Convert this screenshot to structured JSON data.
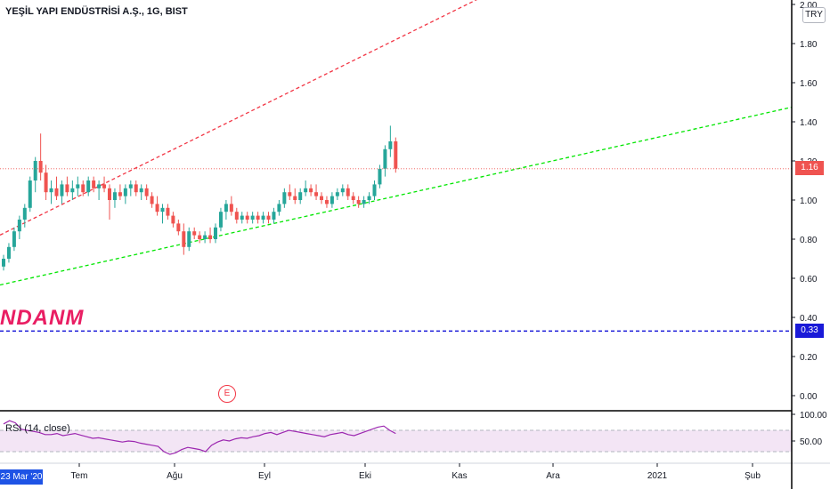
{
  "header": {
    "title": "YEŞİL YAPI ENDÜSTRİSİ A.Ş., 1G, BIST",
    "currency": "TRY"
  },
  "watermark": "NDANM",
  "rsi": {
    "title": "RSI (14, close)",
    "y_ticks": [
      "100.00",
      "50.00"
    ]
  },
  "price_axis": {
    "ticks": [
      "2.00",
      "1.80",
      "1.60",
      "1.40",
      "1.20",
      "1.00",
      "0.80",
      "0.60",
      "0.40",
      "0.20",
      "0.00"
    ],
    "current_price_label": "1.16",
    "hline_label": "0.33"
  },
  "time_axis": {
    "labels": [
      "Tem",
      "Ağu",
      "Eyl",
      "Eki",
      "Kas",
      "Ara",
      "2021",
      "Şub"
    ],
    "crosshair_date": "23 Mar '20"
  },
  "event_marker": "E",
  "colors": {
    "up": "#26a69a",
    "down": "#ef5350",
    "upper_trend": "#f23645",
    "lower_trend": "#00e600",
    "hline": "#1a1ad8",
    "rsi_line": "#9c27b0",
    "rsi_band": "#f3e5f5"
  },
  "chart_data": {
    "type": "candlestick",
    "price_axis_range": [
      0.0,
      2.0
    ],
    "candles_ohlc": [
      [
        0.66,
        0.72,
        0.64,
        0.7
      ],
      [
        0.7,
        0.78,
        0.68,
        0.76
      ],
      [
        0.76,
        0.86,
        0.74,
        0.84
      ],
      [
        0.84,
        0.92,
        0.8,
        0.9
      ],
      [
        0.9,
        0.98,
        0.86,
        0.96
      ],
      [
        0.96,
        1.12,
        0.94,
        1.1
      ],
      [
        1.1,
        1.22,
        1.04,
        1.2
      ],
      [
        1.2,
        1.34,
        1.1,
        1.14
      ],
      [
        1.14,
        1.18,
        1.0,
        1.04
      ],
      [
        1.04,
        1.1,
        0.98,
        1.06
      ],
      [
        1.06,
        1.12,
        1.0,
        1.02
      ],
      [
        1.02,
        1.1,
        0.98,
        1.08
      ],
      [
        1.08,
        1.12,
        1.02,
        1.04
      ],
      [
        1.04,
        1.1,
        1.0,
        1.06
      ],
      [
        1.06,
        1.12,
        1.02,
        1.08
      ],
      [
        1.08,
        1.1,
        1.02,
        1.04
      ],
      [
        1.04,
        1.12,
        1.02,
        1.1
      ],
      [
        1.1,
        1.12,
        1.04,
        1.06
      ],
      [
        1.06,
        1.1,
        1.0,
        1.08
      ],
      [
        1.08,
        1.12,
        1.04,
        1.06
      ],
      [
        1.06,
        1.08,
        0.9,
        1.0
      ],
      [
        1.0,
        1.06,
        0.96,
        1.04
      ],
      [
        1.04,
        1.08,
        1.0,
        1.02
      ],
      [
        1.02,
        1.08,
        0.98,
        1.06
      ],
      [
        1.06,
        1.1,
        1.02,
        1.08
      ],
      [
        1.08,
        1.1,
        1.02,
        1.04
      ],
      [
        1.04,
        1.08,
        1.0,
        1.06
      ],
      [
        1.06,
        1.08,
        1.0,
        1.02
      ],
      [
        1.02,
        1.04,
        0.96,
        0.98
      ],
      [
        0.98,
        1.02,
        0.92,
        0.94
      ],
      [
        0.94,
        0.98,
        0.88,
        0.96
      ],
      [
        0.96,
        0.98,
        0.9,
        0.92
      ],
      [
        0.92,
        0.94,
        0.86,
        0.88
      ],
      [
        0.88,
        0.9,
        0.82,
        0.84
      ],
      [
        0.84,
        0.88,
        0.72,
        0.76
      ],
      [
        0.76,
        0.86,
        0.74,
        0.84
      ],
      [
        0.84,
        0.86,
        0.8,
        0.82
      ],
      [
        0.82,
        0.84,
        0.78,
        0.8
      ],
      [
        0.8,
        0.84,
        0.78,
        0.82
      ],
      [
        0.82,
        0.86,
        0.78,
        0.8
      ],
      [
        0.8,
        0.88,
        0.78,
        0.86
      ],
      [
        0.86,
        0.96,
        0.84,
        0.94
      ],
      [
        0.94,
        1.0,
        0.9,
        0.98
      ],
      [
        0.98,
        1.02,
        0.92,
        0.94
      ],
      [
        0.94,
        0.96,
        0.88,
        0.9
      ],
      [
        0.9,
        0.94,
        0.88,
        0.92
      ],
      [
        0.92,
        0.94,
        0.88,
        0.9
      ],
      [
        0.9,
        0.94,
        0.88,
        0.92
      ],
      [
        0.92,
        0.94,
        0.88,
        0.9
      ],
      [
        0.9,
        0.94,
        0.88,
        0.92
      ],
      [
        0.92,
        0.94,
        0.88,
        0.9
      ],
      [
        0.9,
        0.96,
        0.88,
        0.94
      ],
      [
        0.94,
        1.0,
        0.92,
        0.98
      ],
      [
        0.98,
        1.06,
        0.96,
        1.04
      ],
      [
        1.04,
        1.08,
        1.0,
        1.02
      ],
      [
        1.02,
        1.06,
        0.98,
        1.0
      ],
      [
        1.0,
        1.06,
        0.98,
        1.04
      ],
      [
        1.04,
        1.1,
        1.02,
        1.06
      ],
      [
        1.06,
        1.08,
        1.02,
        1.04
      ],
      [
        1.04,
        1.08,
        1.0,
        1.02
      ],
      [
        1.02,
        1.04,
        0.98,
        1.0
      ],
      [
        1.0,
        1.02,
        0.96,
        0.98
      ],
      [
        0.98,
        1.04,
        0.96,
        1.02
      ],
      [
        1.02,
        1.06,
        1.0,
        1.04
      ],
      [
        1.04,
        1.08,
        1.02,
        1.06
      ],
      [
        1.06,
        1.08,
        1.0,
        1.02
      ],
      [
        1.02,
        1.04,
        0.98,
        1.0
      ],
      [
        1.0,
        1.02,
        0.96,
        0.98
      ],
      [
        0.98,
        1.02,
        0.96,
        1.0
      ],
      [
        1.0,
        1.04,
        0.98,
        1.02
      ],
      [
        1.02,
        1.1,
        1.0,
        1.08
      ],
      [
        1.08,
        1.18,
        1.06,
        1.16
      ],
      [
        1.16,
        1.28,
        1.12,
        1.26
      ],
      [
        1.26,
        1.38,
        1.22,
        1.3
      ],
      [
        1.3,
        1.32,
        1.14,
        1.16
      ]
    ],
    "current_price": 1.16,
    "horizontal_line": 0.33,
    "trend_lines": [
      {
        "style": "dashed",
        "color": "red",
        "from": {
          "candle": 0,
          "price": 0.83
        },
        "to": {
          "candle": 74,
          "price": 1.82
        }
      },
      {
        "style": "dashed",
        "color": "green",
        "from": {
          "candle": 0,
          "price": 0.57
        },
        "to": {
          "candle": 74,
          "price": 1.02
        }
      }
    ],
    "rsi_levels": [
      70,
      30
    ],
    "rsi_values": [
      82,
      88,
      84,
      72,
      70,
      68,
      66,
      62,
      62,
      64,
      60,
      62,
      64,
      61,
      58,
      55,
      56,
      54,
      52,
      50,
      48,
      50,
      49,
      46,
      44,
      42,
      40,
      30,
      25,
      28,
      34,
      38,
      36,
      34,
      30,
      42,
      48,
      52,
      50,
      54,
      56,
      55,
      58,
      60,
      64,
      66,
      62,
      66,
      70,
      68,
      66,
      64,
      62,
      60,
      58,
      62,
      64,
      66,
      62,
      60,
      64,
      68,
      72,
      76,
      78,
      70,
      64
    ]
  }
}
